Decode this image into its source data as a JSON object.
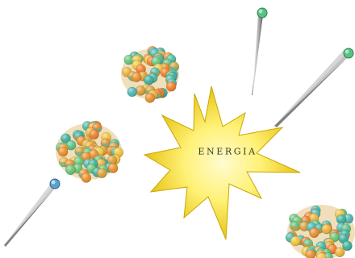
{
  "diagram": {
    "center_label": "ENERGIA",
    "colors": {
      "proton_colors": [
        "#e98f2b",
        "#e8b23a",
        "#f0c33f",
        "#ee7e2a",
        "#d9a03a"
      ],
      "neutron_colors": [
        "#49b9a6",
        "#58c183",
        "#3fae9c",
        "#68c478",
        "#4fb6b1"
      ],
      "star_outer": "#e6c200",
      "star_inner": "#fff59a",
      "streak_light": "#f2f2f2",
      "streak_dark": "#7a7a7a"
    }
  }
}
